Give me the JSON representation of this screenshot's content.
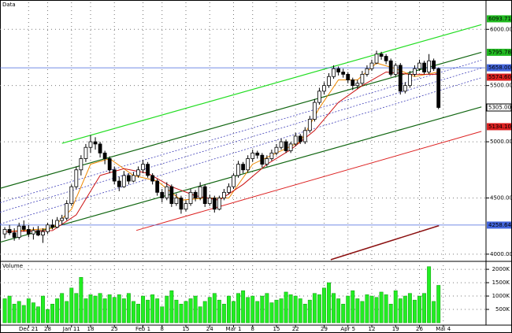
{
  "chart_data": {
    "type": "candlestick",
    "title": "Data",
    "xlim": [
      -1,
      100.8
    ],
    "ylim": [
      3950,
      6240
    ],
    "grid": true,
    "up_color": "#ffffff",
    "down_color": "#000000",
    "yticks": [
      {
        "value": 4000,
        "label": "4000.00"
      },
      {
        "value": 4500,
        "label": "4500.00"
      },
      {
        "value": 5000,
        "label": "5000.00"
      },
      {
        "value": 5500,
        "label": "5500.00"
      },
      {
        "value": 6000,
        "label": "6000.00"
      }
    ],
    "x_labels": [
      {
        "value": 5,
        "label": "Dec 21"
      },
      {
        "value": 9,
        "label": "28"
      },
      {
        "value": 14,
        "label": "Jan 11"
      },
      {
        "value": 18,
        "label": "18"
      },
      {
        "value": 23,
        "label": "25"
      },
      {
        "value": 29,
        "label": "Feb 1"
      },
      {
        "value": 33,
        "label": "8"
      },
      {
        "value": 38,
        "label": "15"
      },
      {
        "value": 43,
        "label": "24"
      },
      {
        "value": 48,
        "label": "Mar 1"
      },
      {
        "value": 52,
        "label": "8"
      },
      {
        "value": 57,
        "label": "15"
      },
      {
        "value": 61,
        "label": "22"
      },
      {
        "value": 67,
        "label": "29"
      },
      {
        "value": 72,
        "label": "Apr 5"
      },
      {
        "value": 77,
        "label": "12"
      },
      {
        "value": 82,
        "label": "19"
      },
      {
        "value": 87,
        "label": "26"
      },
      {
        "value": 92,
        "label": "Mai 4"
      }
    ],
    "ohlc": [
      [
        4180,
        4240,
        4140,
        4220
      ],
      [
        4220,
        4260,
        4170,
        4190
      ],
      [
        4190,
        4230,
        4120,
        4150
      ],
      [
        4150,
        4280,
        4130,
        4250
      ],
      [
        4250,
        4300,
        4200,
        4220
      ],
      [
        4220,
        4260,
        4150,
        4180
      ],
      [
        4180,
        4240,
        4130,
        4210
      ],
      [
        4210,
        4250,
        4160,
        4170
      ],
      [
        4170,
        4230,
        4100,
        4200
      ],
      [
        4200,
        4280,
        4180,
        4260
      ],
      [
        4260,
        4310,
        4220,
        4240
      ],
      [
        4240,
        4330,
        4230,
        4300
      ],
      [
        4300,
        4350,
        4260,
        4320
      ],
      [
        4320,
        4480,
        4300,
        4450
      ],
      [
        4450,
        4620,
        4430,
        4600
      ],
      [
        4600,
        4780,
        4580,
        4750
      ],
      [
        4750,
        4880,
        4700,
        4850
      ],
      [
        4850,
        4980,
        4820,
        4950
      ],
      [
        4950,
        5060,
        4900,
        5000
      ],
      [
        5000,
        5040,
        4930,
        4980
      ],
      [
        4980,
        5000,
        4860,
        4900
      ],
      [
        4900,
        4920,
        4800,
        4850
      ],
      [
        4850,
        4870,
        4720,
        4750
      ],
      [
        4750,
        4780,
        4620,
        4650
      ],
      [
        4650,
        4690,
        4560,
        4600
      ],
      [
        4600,
        4740,
        4590,
        4700
      ],
      [
        4700,
        4720,
        4620,
        4650
      ],
      [
        4650,
        4730,
        4640,
        4700
      ],
      [
        4700,
        4780,
        4680,
        4750
      ],
      [
        4750,
        4840,
        4720,
        4800
      ],
      [
        4800,
        4820,
        4680,
        4700
      ],
      [
        4700,
        4720,
        4620,
        4650
      ],
      [
        4650,
        4670,
        4520,
        4550
      ],
      [
        4550,
        4580,
        4460,
        4500
      ],
      [
        4500,
        4640,
        4480,
        4600
      ],
      [
        4600,
        4620,
        4420,
        4450
      ],
      [
        4450,
        4540,
        4430,
        4500
      ],
      [
        4500,
        4520,
        4360,
        4400
      ],
      [
        4400,
        4480,
        4380,
        4450
      ],
      [
        4450,
        4580,
        4430,
        4550
      ],
      [
        4550,
        4570,
        4470,
        4500
      ],
      [
        4500,
        4640,
        4480,
        4600
      ],
      [
        4600,
        4620,
        4420,
        4450
      ],
      [
        4450,
        4530,
        4430,
        4500
      ],
      [
        4500,
        4520,
        4370,
        4400
      ],
      [
        4400,
        4520,
        4390,
        4500
      ],
      [
        4500,
        4580,
        4480,
        4550
      ],
      [
        4550,
        4630,
        4530,
        4600
      ],
      [
        4600,
        4720,
        4580,
        4700
      ],
      [
        4700,
        4830,
        4680,
        4800
      ],
      [
        4800,
        4820,
        4720,
        4750
      ],
      [
        4750,
        4880,
        4730,
        4850
      ],
      [
        4850,
        4930,
        4820,
        4900
      ],
      [
        4900,
        4920,
        4850,
        4880
      ],
      [
        4880,
        4900,
        4770,
        4800
      ],
      [
        4800,
        4880,
        4780,
        4850
      ],
      [
        4850,
        4930,
        4830,
        4900
      ],
      [
        4900,
        4980,
        4880,
        4950
      ],
      [
        4950,
        5030,
        4930,
        5000
      ],
      [
        5000,
        5020,
        4900,
        4920
      ],
      [
        4920,
        5000,
        4900,
        4980
      ],
      [
        4980,
        5080,
        4960,
        5050
      ],
      [
        5050,
        5070,
        4980,
        5000
      ],
      [
        5000,
        5130,
        4980,
        5100
      ],
      [
        5100,
        5230,
        5080,
        5200
      ],
      [
        5200,
        5380,
        5180,
        5350
      ],
      [
        5350,
        5480,
        5330,
        5450
      ],
      [
        5450,
        5530,
        5420,
        5500
      ],
      [
        5500,
        5610,
        5480,
        5580
      ],
      [
        5580,
        5680,
        5560,
        5650
      ],
      [
        5650,
        5670,
        5590,
        5620
      ],
      [
        5620,
        5650,
        5570,
        5600
      ],
      [
        5600,
        5620,
        5520,
        5550
      ],
      [
        5550,
        5570,
        5460,
        5500
      ],
      [
        5500,
        5550,
        5470,
        5520
      ],
      [
        5520,
        5630,
        5500,
        5600
      ],
      [
        5600,
        5680,
        5580,
        5650
      ],
      [
        5650,
        5730,
        5630,
        5700
      ],
      [
        5700,
        5810,
        5690,
        5780
      ],
      [
        5780,
        5800,
        5730,
        5760
      ],
      [
        5760,
        5780,
        5690,
        5720
      ],
      [
        5720,
        5740,
        5580,
        5600
      ],
      [
        5600,
        5700,
        5580,
        5680
      ],
      [
        5680,
        5700,
        5420,
        5450
      ],
      [
        5450,
        5530,
        5430,
        5500
      ],
      [
        5500,
        5630,
        5480,
        5600
      ],
      [
        5600,
        5680,
        5580,
        5650
      ],
      [
        5650,
        5730,
        5630,
        5700
      ],
      [
        5700,
        5720,
        5600,
        5620
      ],
      [
        5620,
        5780,
        5600,
        5720
      ],
      [
        5720,
        5740,
        5630,
        5650
      ],
      [
        5650,
        5660,
        5290,
        5305
      ]
    ],
    "lines": [
      {
        "x": [
          12,
          100
        ],
        "values": [
          4986,
          6042
        ],
        "color": "#22dd22",
        "width": 1.2
      },
      {
        "x": [
          -1,
          100
        ],
        "values": [
          4585,
          5796
        ],
        "color": "#116611",
        "width": 1.2
      },
      {
        "x": [
          -1,
          100
        ],
        "values": [
          4106,
          5310
        ],
        "color": "#116611",
        "width": 1.2
      },
      {
        "x": [
          -1,
          100
        ],
        "values": [
          4458,
          5725
        ],
        "color": "#4444bb",
        "width": 0.8,
        "dash": true
      },
      {
        "x": [
          -1,
          100
        ],
        "values": [
          4373,
          5655
        ],
        "color": "#4444bb",
        "width": 0.8,
        "dash": true
      },
      {
        "x": [
          -1,
          100
        ],
        "values": [
          4268,
          5570
        ],
        "color": "#4444bb",
        "width": 0.8,
        "dash": true
      },
      {
        "x": [
          27.6,
          100
        ],
        "values": [
          4211,
          5092
        ],
        "color": "#dd2222",
        "width": 1
      },
      {
        "x": [
          68.4,
          91.1
        ],
        "values": [
          3951,
          4254
        ],
        "color": "#8b1010",
        "width": 1.5
      },
      {
        "x": [
          -1,
          100.8
        ],
        "values": [
          5658,
          5658
        ],
        "color": "#4466dd",
        "width": 0.8
      },
      {
        "x": [
          -1,
          100.8
        ],
        "values": [
          4258.64,
          4258.64
        ],
        "color": "#4466dd",
        "width": 0.8
      },
      {
        "x": [
          0,
          10,
          14,
          18,
          22,
          27,
          32,
          37,
          42,
          47,
          52,
          57,
          62,
          66,
          70,
          74,
          78,
          82,
          86,
          91
        ],
        "values": [
          4200,
          4230,
          4400,
          4800,
          4850,
          4700,
          4650,
          4480,
          4500,
          4500,
          4800,
          4900,
          5000,
          5300,
          5550,
          5550,
          5700,
          5650,
          5580,
          5620
        ],
        "color": "#ee8800",
        "width": 1
      },
      {
        "x": [
          0,
          10,
          15,
          20,
          25,
          30,
          35,
          40,
          45,
          50,
          55,
          60,
          65,
          70,
          75,
          80,
          85,
          91
        ],
        "values": [
          4200,
          4210,
          4350,
          4700,
          4760,
          4720,
          4600,
          4520,
          4480,
          4620,
          4800,
          4930,
          5100,
          5350,
          5500,
          5620,
          5600,
          5600
        ],
        "color": "#cc1111",
        "width": 1
      }
    ],
    "price_labels": [
      {
        "value": 6093.71,
        "label": "6093.71",
        "color": "#22bb22"
      },
      {
        "value": 5795.78,
        "label": "5795.78",
        "color": "#22bb22"
      },
      {
        "value": 5658.0,
        "label": "5658.00",
        "color": "#4466dd"
      },
      {
        "value": 5574.6,
        "label": "5574.60",
        "color": "#dd2222"
      },
      {
        "value": 5305.0,
        "label": "5305.00",
        "color": "#ffffff"
      },
      {
        "value": 5134.1,
        "label": "5134.10",
        "color": "#dd2222"
      },
      {
        "value": 4258.64,
        "label": "4258.64",
        "color": "#4466dd"
      }
    ],
    "volume": {
      "title": "Volume",
      "color": "#22ee22",
      "ylim": [
        0,
        2150
      ],
      "yticks": [
        {
          "value": 500,
          "label": "500K"
        },
        {
          "value": 1000,
          "label": "1000K"
        },
        {
          "value": 1500,
          "label": "1500K"
        },
        {
          "value": 2000,
          "label": "2000K"
        }
      ],
      "values": [
        900,
        1000,
        700,
        800,
        650,
        900,
        750,
        600,
        1000,
        500,
        700,
        900,
        1100,
        800,
        1300,
        1100,
        1700,
        900,
        1050,
        1000,
        1100,
        900,
        1050,
        950,
        1050,
        900,
        1100,
        800,
        700,
        1000,
        850,
        1050,
        900,
        600,
        1000,
        1200,
        850,
        700,
        800,
        900,
        1000,
        600,
        800,
        950,
        1100,
        850,
        700,
        1000,
        800,
        1100,
        1200,
        950,
        1000,
        800,
        1000,
        1100,
        750,
        850,
        900,
        1150,
        1050,
        1000,
        900,
        700,
        850,
        1100,
        1050,
        1300,
        1500,
        1100,
        900,
        700,
        1000,
        1200,
        900,
        800,
        1050,
        1000,
        950,
        1150,
        1050,
        700,
        1200,
        900,
        1000,
        1100,
        850,
        1000,
        1100,
        2100,
        800,
        1400
      ]
    }
  }
}
